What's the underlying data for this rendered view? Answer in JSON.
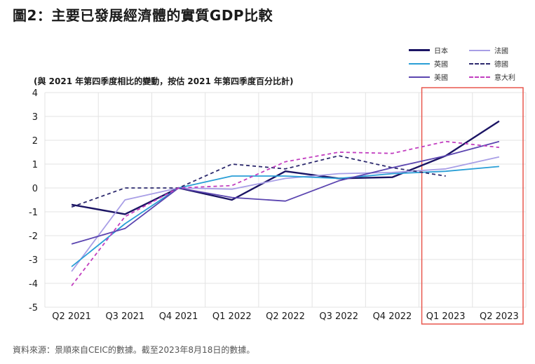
{
  "title": "圖2：主要已發展經濟體的實質GDP比較",
  "source": "資料來源：景順來自CEIC的數據。截至2023年8月18日的數據。",
  "chart_data": {
    "type": "line",
    "title": "圖2：主要已發展經濟體的實質GDP比較",
    "subtitle": "(與 2021 年第四季度相比的變動，按估 2021 年第四季度百分比計)",
    "xlabel": "",
    "ylabel": "",
    "ylim": [
      -5,
      4
    ],
    "yticks": [
      "4",
      "3",
      "2",
      "1",
      "0",
      "-1",
      "-2",
      "-3",
      "-4",
      "-5"
    ],
    "categories": [
      "Q2 2021",
      "Q3 2021",
      "Q4 2021",
      "Q1 2022",
      "Q2 2022",
      "Q3 2022",
      "Q4 2022",
      "Q1 2023",
      "Q2 2023"
    ],
    "highlight": {
      "from": "Q1 2023",
      "to": "Q2 2023",
      "color": "#e8574d"
    },
    "legend_position": "top-right",
    "series": [
      {
        "name": "日本",
        "color": "#1b1464",
        "dashed": false,
        "values": [
          -0.7,
          -1.1,
          0.0,
          -0.5,
          0.7,
          0.4,
          0.45,
          1.35,
          2.8
        ]
      },
      {
        "name": "法國",
        "color": "#a89ee6",
        "dashed": false,
        "values": [
          -3.5,
          -0.5,
          0.0,
          -0.05,
          0.4,
          0.6,
          0.65,
          0.8,
          1.3
        ]
      },
      {
        "name": "英國",
        "color": "#2a9fd6",
        "dashed": false,
        "values": [
          -3.3,
          -1.5,
          0.0,
          0.5,
          0.5,
          0.4,
          0.6,
          0.7,
          0.9
        ]
      },
      {
        "name": "德國",
        "color": "#2d2a6e",
        "dashed": true,
        "values": [
          -0.8,
          0.0,
          0.0,
          1.0,
          0.8,
          1.35,
          0.85,
          0.5,
          null
        ]
      },
      {
        "name": "美國",
        "color": "#5b45b0",
        "dashed": false,
        "values": [
          -2.35,
          -1.7,
          0.0,
          -0.4,
          -0.55,
          0.3,
          0.85,
          1.35,
          1.95
        ]
      },
      {
        "name": "意大利",
        "color": "#c23fc0",
        "dashed": true,
        "values": [
          -4.1,
          -1.2,
          0.0,
          0.1,
          1.1,
          1.5,
          1.45,
          1.95,
          1.7
        ]
      }
    ]
  }
}
